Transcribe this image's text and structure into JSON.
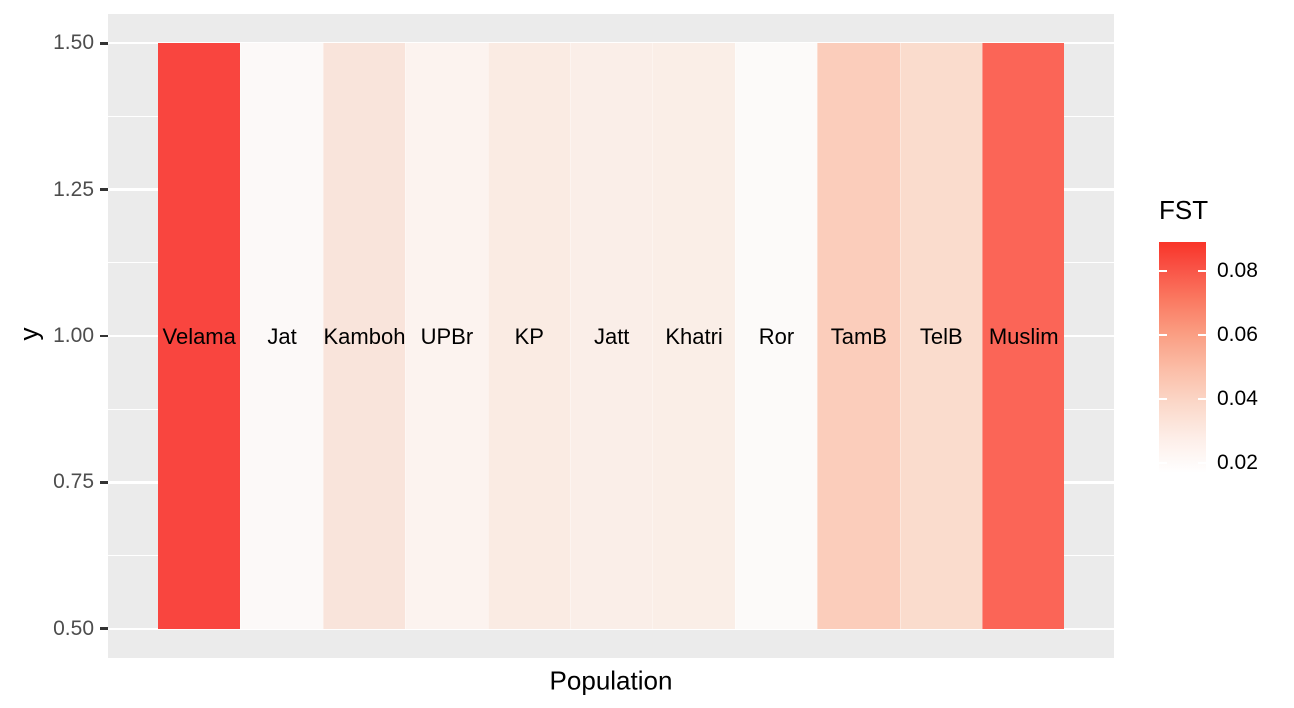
{
  "figure": {
    "background": "#FFFFFF",
    "panel_background": "#EBEBEB",
    "gridline_color": "#FFFFFF",
    "axis_tick_color": "#333333",
    "axis_text_color": "#4D4D4D"
  },
  "chart_data": {
    "type": "heatmap",
    "title": "",
    "xlabel": "Population",
    "ylabel": "y",
    "categories": [
      "Velama",
      "Jat",
      "Kamboh",
      "UPBr",
      "KP",
      "Jatt",
      "Khatri",
      "Ror",
      "TamB",
      "TelB",
      "Muslim"
    ],
    "series": [
      {
        "name": "FST",
        "values": [
          0.088,
          0.018,
          0.03,
          0.023,
          0.027,
          0.026,
          0.026,
          0.018,
          0.043,
          0.036,
          0.08
        ]
      }
    ],
    "tile_colors": [
      "#F9453F",
      "#FCF9F8",
      "#F9E4DB",
      "#FCF3EF",
      "#FAEBE3",
      "#FAEEE8",
      "#FAEEE7",
      "#FCFAF9",
      "#FBCDBB",
      "#FADCCD",
      "#FB6557"
    ],
    "y_ticks": [
      "1.50",
      "1.25",
      "1.00",
      "0.75",
      "0.50"
    ],
    "y_range": [
      0.45,
      1.55
    ],
    "tile_y_extent": [
      0.5,
      1.5
    ],
    "grid": true,
    "legend": {
      "title": "FST",
      "position": "right",
      "ticks": [
        "0.08",
        "0.06",
        "0.04",
        "0.02"
      ],
      "domain": [
        0.017,
        0.089
      ],
      "gradient_low": "#FFFFFF",
      "gradient_high": "#F93428"
    }
  }
}
